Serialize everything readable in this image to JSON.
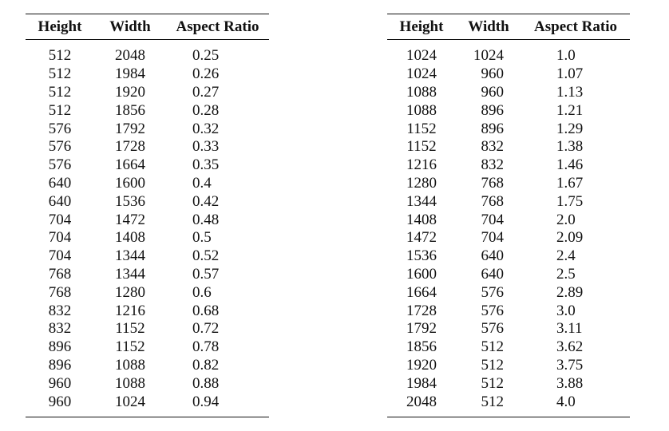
{
  "headers": [
    "Height",
    "Width",
    "Aspect Ratio"
  ],
  "left_rows": [
    [
      "512",
      "2048",
      "0.25"
    ],
    [
      "512",
      "1984",
      "0.26"
    ],
    [
      "512",
      "1920",
      "0.27"
    ],
    [
      "512",
      "1856",
      "0.28"
    ],
    [
      "576",
      "1792",
      "0.32"
    ],
    [
      "576",
      "1728",
      "0.33"
    ],
    [
      "576",
      "1664",
      "0.35"
    ],
    [
      "640",
      "1600",
      "0.4"
    ],
    [
      "640",
      "1536",
      "0.42"
    ],
    [
      "704",
      "1472",
      "0.48"
    ],
    [
      "704",
      "1408",
      "0.5"
    ],
    [
      "704",
      "1344",
      "0.52"
    ],
    [
      "768",
      "1344",
      "0.57"
    ],
    [
      "768",
      "1280",
      "0.6"
    ],
    [
      "832",
      "1216",
      "0.68"
    ],
    [
      "832",
      "1152",
      "0.72"
    ],
    [
      "896",
      "1152",
      "0.78"
    ],
    [
      "896",
      "1088",
      "0.82"
    ],
    [
      "960",
      "1088",
      "0.88"
    ],
    [
      "960",
      "1024",
      "0.94"
    ]
  ],
  "right_rows": [
    [
      "1024",
      "1024",
      "1.0"
    ],
    [
      "1024",
      "960",
      "1.07"
    ],
    [
      "1088",
      "960",
      "1.13"
    ],
    [
      "1088",
      "896",
      "1.21"
    ],
    [
      "1152",
      "896",
      "1.29"
    ],
    [
      "1152",
      "832",
      "1.38"
    ],
    [
      "1216",
      "832",
      "1.46"
    ],
    [
      "1280",
      "768",
      "1.67"
    ],
    [
      "1344",
      "768",
      "1.75"
    ],
    [
      "1408",
      "704",
      "2.0"
    ],
    [
      "1472",
      "704",
      "2.09"
    ],
    [
      "1536",
      "640",
      "2.4"
    ],
    [
      "1600",
      "640",
      "2.5"
    ],
    [
      "1664",
      "576",
      "2.89"
    ],
    [
      "1728",
      "576",
      "3.0"
    ],
    [
      "1792",
      "576",
      "3.11"
    ],
    [
      "1856",
      "512",
      "3.62"
    ],
    [
      "1920",
      "512",
      "3.75"
    ],
    [
      "1984",
      "512",
      "3.88"
    ],
    [
      "2048",
      "512",
      "4.0"
    ]
  ]
}
